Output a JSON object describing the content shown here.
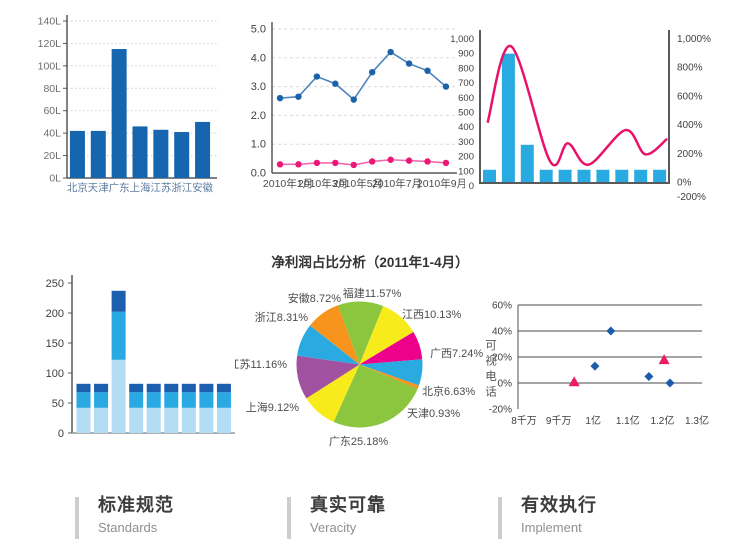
{
  "page": {
    "background": "#ffffff"
  },
  "features": [
    {
      "title": "标准规范",
      "subtitle": "Standards"
    },
    {
      "title": "真实可靠",
      "subtitle": "Veracity"
    },
    {
      "title": "有效执行",
      "subtitle": "Implement"
    }
  ],
  "chart_data": [
    {
      "id": "regional-bar",
      "type": "bar",
      "categories": [
        "北京",
        "天津",
        "广东",
        "上海",
        "江苏",
        "浙江",
        "安徽"
      ],
      "values": [
        42,
        42,
        115,
        46,
        43,
        41,
        50
      ],
      "y_ticks": [
        "0L",
        "20L",
        "40L",
        "60L",
        "80L",
        "100L",
        "120L",
        "140L"
      ],
      "ylim": [
        0,
        140
      ],
      "bar_color": "#1565af",
      "grid": "dotted",
      "legend_position": "none"
    },
    {
      "id": "monthly-line",
      "type": "line",
      "x_tick_labels": [
        "2010年1月",
        "2010年3月",
        "2010年5月",
        "2010年7月",
        "2010年9月"
      ],
      "y_ticks": [
        "0.0",
        "1.0",
        "2.0",
        "3.0",
        "4.0",
        "5.0"
      ],
      "ylim": [
        0,
        5
      ],
      "grid": "dashed",
      "series": [
        {
          "name": "series-blue",
          "line_color": "#4b84bb",
          "marker_color": "#1b62ab",
          "values": [
            2.6,
            2.65,
            3.35,
            3.1,
            2.55,
            3.5,
            4.2,
            3.8,
            3.55,
            3.0
          ]
        },
        {
          "name": "series-pink",
          "line_color": "#f06aae",
          "marker_color": "#ea1777",
          "values": [
            0.3,
            0.3,
            0.35,
            0.35,
            0.28,
            0.4,
            0.46,
            0.43,
            0.4,
            0.35
          ]
        }
      ]
    },
    {
      "id": "bar-line-combo",
      "type": "combo",
      "bar_values": [
        90,
        880,
        260,
        90,
        90,
        90,
        90,
        90,
        90,
        90
      ],
      "bar_color": "#29abe2",
      "left_y_ticks": [
        "1,000",
        "900",
        "800",
        "700",
        "600",
        "500",
        "400",
        "300",
        "200",
        "100",
        "0"
      ],
      "left_ylim": [
        0,
        1000
      ],
      "right_y_ticks": [
        "1,000%",
        "800%",
        "600%",
        "400%",
        "200%",
        "0%",
        "-200%"
      ],
      "line_color": "#e81368",
      "line_points": [
        [
          0.04,
          410
        ],
        [
          0.165,
          930
        ],
        [
          0.37,
          150
        ],
        [
          0.465,
          270
        ],
        [
          0.575,
          125
        ],
        [
          0.77,
          360
        ],
        [
          0.875,
          195
        ],
        [
          0.99,
          300
        ]
      ]
    },
    {
      "id": "stacked-bar",
      "type": "stacked-bar",
      "values": [
        [
          42,
          26,
          14
        ],
        [
          42,
          26,
          14
        ],
        [
          122,
          80,
          35
        ],
        [
          42,
          26,
          14
        ],
        [
          42,
          26,
          14
        ],
        [
          42,
          26,
          14
        ],
        [
          42,
          26,
          14
        ],
        [
          42,
          26,
          14
        ],
        [
          42,
          26,
          14
        ]
      ],
      "colors": [
        "#b3ddf4",
        "#29a9e1",
        "#1c5fae"
      ],
      "y_ticks": [
        "0",
        "50",
        "100",
        "150",
        "200",
        "250"
      ],
      "ylim": [
        0,
        250
      ]
    },
    {
      "id": "net-profit-pie",
      "type": "pie",
      "title": "净利润占比分析（2011年1-4月）",
      "start_angle_deg": -20,
      "slices": [
        {
          "label": "福建",
          "pct": 11.57,
          "color": "#8cc63f"
        },
        {
          "label": "江西",
          "pct": 10.13,
          "color": "#f7eb1c"
        },
        {
          "label": "广西",
          "pct": 7.24,
          "color": "#ec008c"
        },
        {
          "label": "北京",
          "pct": 6.63,
          "color": "#29abe2"
        },
        {
          "label": "天津",
          "pct": 0.93,
          "color": "#f7941e"
        },
        {
          "label": "广东",
          "pct": 25.18,
          "color": "#8cc63f"
        },
        {
          "label": "上海",
          "pct": 9.12,
          "color": "#f7eb1c"
        },
        {
          "label": "江苏",
          "pct": 11.16,
          "color": "#a0519f"
        },
        {
          "label": "浙江",
          "pct": 8.31,
          "color": "#29abe2"
        },
        {
          "label": "安徽",
          "pct": 8.72,
          "color": "#f7941e"
        }
      ]
    },
    {
      "id": "scatter",
      "type": "scatter",
      "y_axis_label": "可视电话",
      "x_tick_labels": [
        "8千万",
        "9千万",
        "1亿",
        "1.1亿",
        "1.2亿",
        "1.3亿"
      ],
      "x_tick_values": [
        0.8,
        0.9,
        1.0,
        1.1,
        1.2,
        1.3
      ],
      "y_ticks": [
        "60%",
        "40%",
        "20%",
        "0%",
        "-20%"
      ],
      "ylim": [
        -20,
        60
      ],
      "series": [
        {
          "name": "diamond-series",
          "marker": "diamond",
          "color": "#1b5cab",
          "points": [
            [
              1.005,
              13
            ],
            [
              1.051,
              40
            ],
            [
              1.161,
              5
            ],
            [
              1.222,
              0
            ]
          ]
        },
        {
          "name": "triangle-series",
          "marker": "triangle",
          "color": "#ed1a67",
          "points": [
            [
              0.945,
              1
            ],
            [
              1.205,
              18
            ]
          ]
        }
      ]
    }
  ]
}
